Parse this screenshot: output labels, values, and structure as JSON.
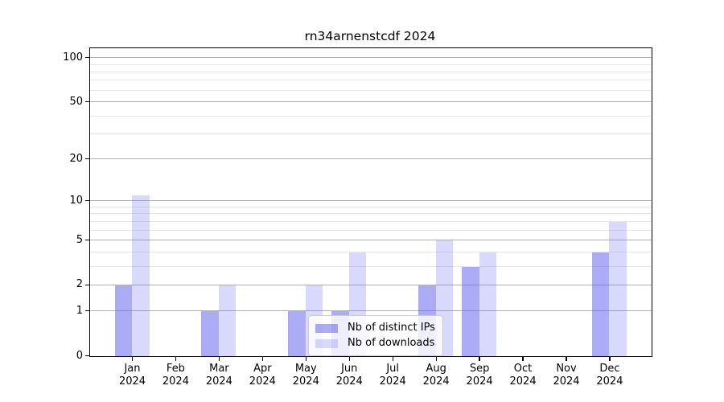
{
  "chart_data": {
    "type": "bar",
    "title": "rn34arnenstcdf 2024",
    "categories": [
      "Jan",
      "Feb",
      "Mar",
      "Apr",
      "May",
      "Jun",
      "Jul",
      "Aug",
      "Sep",
      "Oct",
      "Nov",
      "Dec"
    ],
    "x_year": "2024",
    "series": [
      {
        "name": "Nb of distinct IPs",
        "color": "#6666ee",
        "alpha": 0.55,
        "values": [
          2,
          0,
          1,
          0,
          1,
          1,
          0,
          2,
          3,
          0,
          0,
          4
        ]
      },
      {
        "name": "Nb of downloads",
        "color": "#6666ee",
        "alpha": 0.25,
        "values": [
          11,
          0,
          2,
          0,
          2,
          4,
          0,
          5,
          4,
          0,
          0,
          7
        ]
      }
    ],
    "y_scale": "log1p",
    "ylim": [
      0,
      115
    ],
    "y_ticks_major": [
      0,
      1,
      2,
      5,
      10,
      20,
      50,
      100
    ],
    "y_ticks_minor": [
      3,
      4,
      6,
      7,
      8,
      9,
      30,
      40,
      60,
      70,
      80,
      90
    ],
    "grid": {
      "major_color": "#b0b0b0",
      "minor_color": "#e7e7e7"
    },
    "axis_color": "#000000",
    "legend_position": "lower-center"
  }
}
